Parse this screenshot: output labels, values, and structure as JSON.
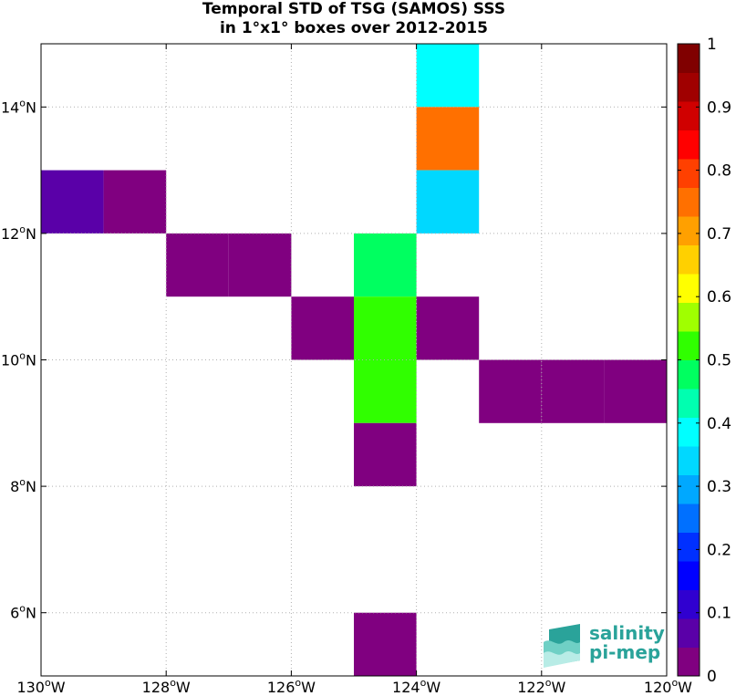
{
  "chart_data": {
    "type": "heatmap",
    "title_lines": [
      "Temporal STD of TSG (SAMOS) SSS",
      "in 1°x1° boxes over 2012-2015"
    ],
    "x_range": [
      -130,
      -120
    ],
    "y_range": [
      5,
      15
    ],
    "x_ticks": [
      {
        "value": -130,
        "label": "130°W"
      },
      {
        "value": -128,
        "label": "128°W"
      },
      {
        "value": -126,
        "label": "126°W"
      },
      {
        "value": -124,
        "label": "124°W"
      },
      {
        "value": -122,
        "label": "122°W"
      },
      {
        "value": -120,
        "label": "120°W"
      }
    ],
    "y_ticks": [
      {
        "value": 6,
        "label": "6°N"
      },
      {
        "value": 8,
        "label": "8°N"
      },
      {
        "value": 10,
        "label": "10°N"
      },
      {
        "value": 12,
        "label": "12°N"
      },
      {
        "value": 14,
        "label": "14°N"
      }
    ],
    "grid": true,
    "colorbar": {
      "range": [
        0,
        1
      ],
      "ticks": [
        0,
        0.1,
        0.2,
        0.3,
        0.4,
        0.5,
        0.6,
        0.7,
        0.8,
        0.9,
        1
      ],
      "tick_labels": [
        "0",
        "0.1",
        "0.2",
        "0.3",
        "0.4",
        "0.5",
        "0.6",
        "0.7",
        "0.8",
        "0.9",
        "1"
      ],
      "colors": [
        "#800080",
        "#5a00a8",
        "#3000d0",
        "#0000ff",
        "#0030ff",
        "#0070ff",
        "#00a8ff",
        "#00d8ff",
        "#00ffff",
        "#00ffb0",
        "#00ff60",
        "#30ff00",
        "#a0ff00",
        "#ffff00",
        "#ffd000",
        "#ffa000",
        "#ff7000",
        "#ff4000",
        "#ff0000",
        "#d00000",
        "#a00000",
        "#800000"
      ]
    },
    "cells": [
      {
        "lon": -130,
        "lat": 12,
        "value": 0.05
      },
      {
        "lon": -129,
        "lat": 12,
        "value": 0.02
      },
      {
        "lon": -128,
        "lat": 11,
        "value": 0.02
      },
      {
        "lon": -127,
        "lat": 11,
        "value": 0.02
      },
      {
        "lon": -126,
        "lat": 10,
        "value": 0.02
      },
      {
        "lon": -125,
        "lat": 11,
        "value": 0.48
      },
      {
        "lon": -125,
        "lat": 10,
        "value": 0.52
      },
      {
        "lon": -125,
        "lat": 9,
        "value": 0.52
      },
      {
        "lon": -124,
        "lat": 10,
        "value": 0.02
      },
      {
        "lon": -125,
        "lat": 8,
        "value": 0.02
      },
      {
        "lon": -125,
        "lat": 5,
        "value": 0.02
      },
      {
        "lon": -124,
        "lat": 14,
        "value": 0.4
      },
      {
        "lon": -124,
        "lat": 13,
        "value": 0.77
      },
      {
        "lon": -124,
        "lat": 12,
        "value": 0.33
      },
      {
        "lon": -123,
        "lat": 9,
        "value": 0.02
      },
      {
        "lon": -122,
        "lat": 9,
        "value": 0.02
      },
      {
        "lon": -121,
        "lat": 9,
        "value": 0.02
      }
    ]
  },
  "logo": {
    "line1": "salinity",
    "line2": "pi-mep"
  }
}
